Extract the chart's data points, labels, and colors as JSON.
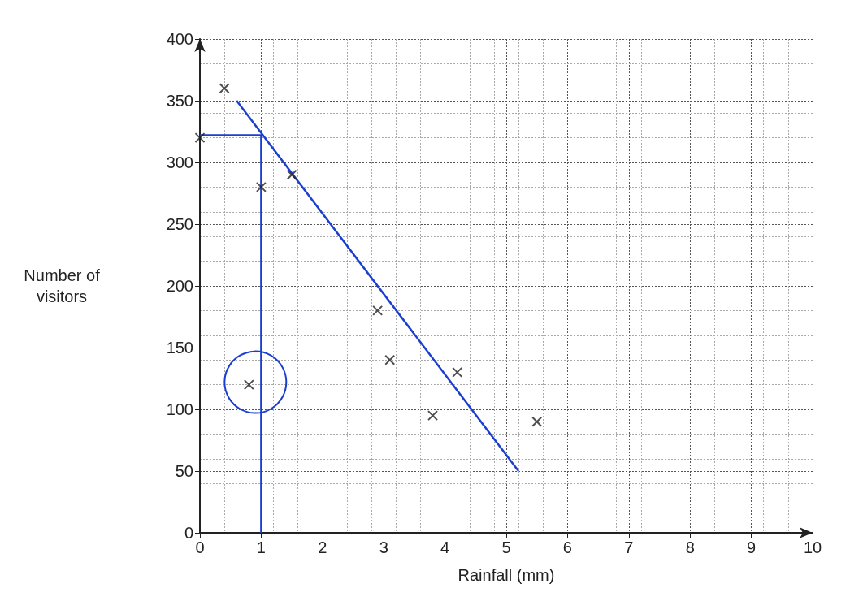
{
  "chart_data": {
    "type": "scatter",
    "xlabel": "Rainfall (mm)",
    "ylabel": "Number of\nvisitors",
    "grid": true,
    "xlim": [
      0,
      10
    ],
    "xticks": [
      0,
      1,
      2,
      3,
      4,
      5,
      6,
      7,
      8,
      9,
      10
    ],
    "ylim": [
      0,
      400
    ],
    "yticks": [
      0,
      50,
      100,
      150,
      200,
      250,
      300,
      350,
      400
    ],
    "series": [
      {
        "marker": "cross",
        "color": "#222222",
        "x": [
          0.4,
          0,
          1.0,
          1.5,
          2.9,
          3.1,
          4.2,
          3.8,
          5.5,
          0.8
        ],
        "values": [
          360,
          320,
          280,
          290,
          180,
          140,
          130,
          95,
          90,
          120
        ]
      },
      {
        "type": "line",
        "marker": "none",
        "color": "#1a3fd0",
        "x": [
          0.6,
          5.2
        ],
        "values": [
          350,
          50
        ]
      },
      {
        "type": "line",
        "marker": "none",
        "color": "#1a3fd0",
        "x": [
          0,
          1,
          1
        ],
        "values": [
          322,
          322,
          0
        ]
      }
    ]
  }
}
